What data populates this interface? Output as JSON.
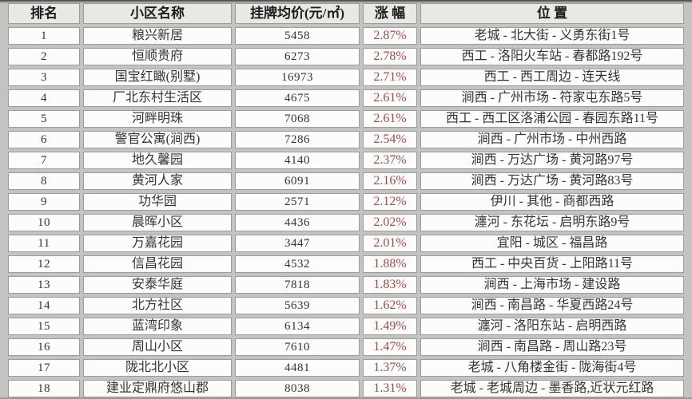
{
  "table": {
    "headers": [
      "排名",
      "小区名称",
      "挂牌均价(元/㎡)",
      "涨 幅",
      "位 置"
    ],
    "rows": [
      {
        "rank": "1",
        "name": "粮兴新居",
        "price": "5458",
        "change": "2.87%",
        "location": "老城 - 北大街 - 义勇东街1号"
      },
      {
        "rank": "2",
        "name": "恒顺贵府",
        "price": "6273",
        "change": "2.78%",
        "location": "西工 - 洛阳火车站 - 春都路192号"
      },
      {
        "rank": "3",
        "name": "国宝红瞰(别墅)",
        "price": "16973",
        "change": "2.71%",
        "location": "西工 - 西工周边 - 连天线"
      },
      {
        "rank": "4",
        "name": "厂北东村生活区",
        "price": "4675",
        "change": "2.61%",
        "location": "涧西 - 广州市场 - 符家屯东路5号"
      },
      {
        "rank": "5",
        "name": "河畔明珠",
        "price": "7068",
        "change": "2.61%",
        "location": "西工 - 西工区洛浦公园 - 春园东路11号"
      },
      {
        "rank": "6",
        "name": "警官公寓(涧西)",
        "price": "7286",
        "change": "2.54%",
        "location": "涧西 - 广州市场 - 中州西路"
      },
      {
        "rank": "7",
        "name": "地久馨园",
        "price": "4140",
        "change": "2.37%",
        "location": "涧西 - 万达广场 - 黄河路97号"
      },
      {
        "rank": "8",
        "name": "黄河人家",
        "price": "6091",
        "change": "2.16%",
        "location": "涧西 - 万达广场 - 黄河路83号"
      },
      {
        "rank": "9",
        "name": "功华园",
        "price": "2571",
        "change": "2.12%",
        "location": "伊川 - 其他 - 商都西路"
      },
      {
        "rank": "10",
        "name": "晨晖小区",
        "price": "4436",
        "change": "2.02%",
        "location": "瀍河 - 东花坛 - 启明东路9号"
      },
      {
        "rank": "11",
        "name": "万嘉花园",
        "price": "3447",
        "change": "2.01%",
        "location": "宜阳 - 城区 - 福昌路"
      },
      {
        "rank": "12",
        "name": "信昌花园",
        "price": "4532",
        "change": "1.88%",
        "location": "西工 - 中央百货 - 上阳路11号"
      },
      {
        "rank": "13",
        "name": "安泰华庭",
        "price": "7818",
        "change": "1.83%",
        "location": "涧西 - 上海市场 - 建设路"
      },
      {
        "rank": "14",
        "name": "北方社区",
        "price": "5639",
        "change": "1.62%",
        "location": "涧西 - 南昌路 - 华夏西路24号"
      },
      {
        "rank": "15",
        "name": "蓝湾印象",
        "price": "6134",
        "change": "1.49%",
        "location": "瀍河 - 洛阳东站 - 启明西路"
      },
      {
        "rank": "16",
        "name": "周山小区",
        "price": "7610",
        "change": "1.47%",
        "location": "涧西 - 南昌路 - 周山路23号"
      },
      {
        "rank": "17",
        "name": "陇北北小区",
        "price": "4481",
        "change": "1.37%",
        "location": "老城 - 八角楼金街 - 陇海街4号"
      },
      {
        "rank": "18",
        "name": "建业定鼎府悠山郡",
        "price": "8038",
        "change": "1.31%",
        "location": "老城 - 老城周边 - 墨香路,近状元红路"
      }
    ]
  },
  "colors": {
    "change_text": "#a4494e",
    "header_background": "#eae8e3",
    "cell_background": "#fcfcfa",
    "cell_border": "#9b9b9b",
    "page_background": "#c3c3c2",
    "body_text": "#333333"
  }
}
